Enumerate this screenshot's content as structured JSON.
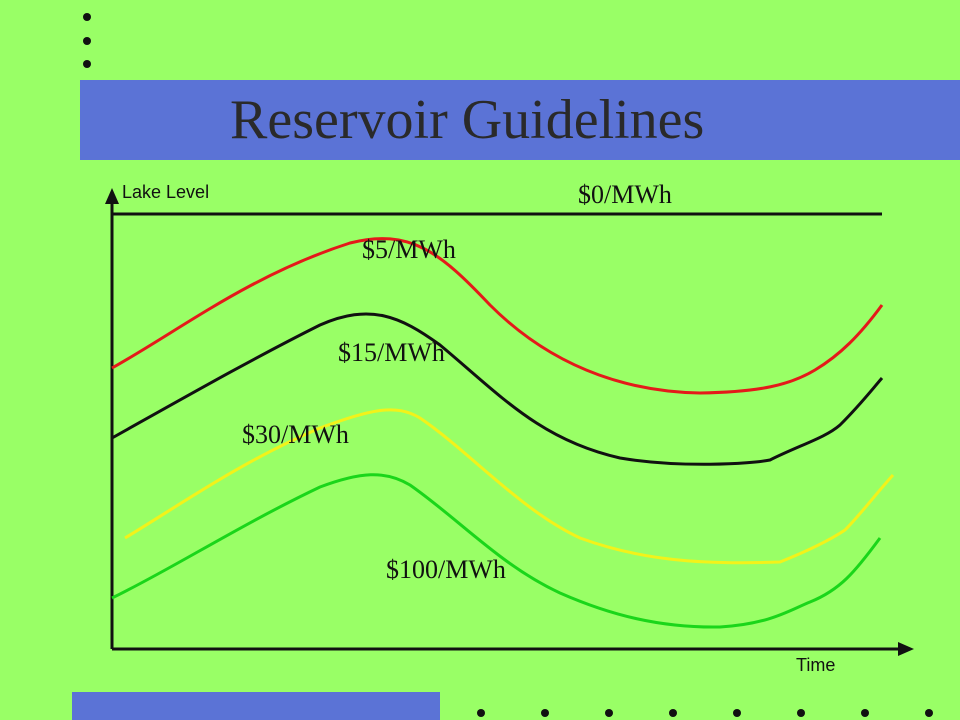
{
  "slide": {
    "title": "Reservoir Guidelines"
  },
  "diagram": {
    "y_axis_label": "Lake Level",
    "x_axis_label": "Time",
    "curves": [
      {
        "label": "$0/MWh",
        "color": "#111111"
      },
      {
        "label": "$5/MWh",
        "color": "#e41a1a"
      },
      {
        "label": "$15/MWh",
        "color": "#111111"
      },
      {
        "label": "$30/MWh",
        "color": "#f2f21a"
      },
      {
        "label": "$100/MWh",
        "color": "#1ad61a"
      }
    ]
  },
  "colors": {
    "background": "#99ff66",
    "band": "#5b73d6"
  }
}
